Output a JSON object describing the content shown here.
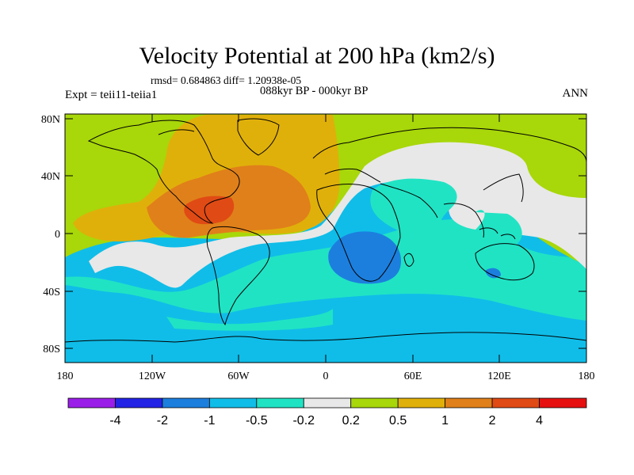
{
  "title": "Velocity Potential at 200 hPa (km2/s)",
  "stats": "rmsd= 0.684863 diff= 1.20938e-05",
  "period": "088kyr BP - 000kyr BP",
  "experiment": "Expt = teii11-teiia1",
  "season": "ANN",
  "lat_ticks": [
    "80N",
    "40N",
    "0",
    "40S",
    "80S"
  ],
  "lon_ticks": [
    "180",
    "120W",
    "60W",
    "0",
    "60E",
    "120E",
    "180"
  ],
  "colorbar": {
    "labels": [
      "-4",
      "-2",
      "-1",
      "-0.5",
      "-0.2",
      "0.2",
      "0.5",
      "1",
      "2",
      "4"
    ],
    "colors": [
      "#9b1ee8",
      "#2323e6",
      "#1c7fde",
      "#10bde8",
      "#20e3c4",
      "#e8e8e8",
      "#a8d70a",
      "#e0b00a",
      "#e0801a",
      "#e04a14",
      "#e61010"
    ]
  },
  "icons": {
    "map": "global-contour-map",
    "colorbar": "colorbar"
  }
}
